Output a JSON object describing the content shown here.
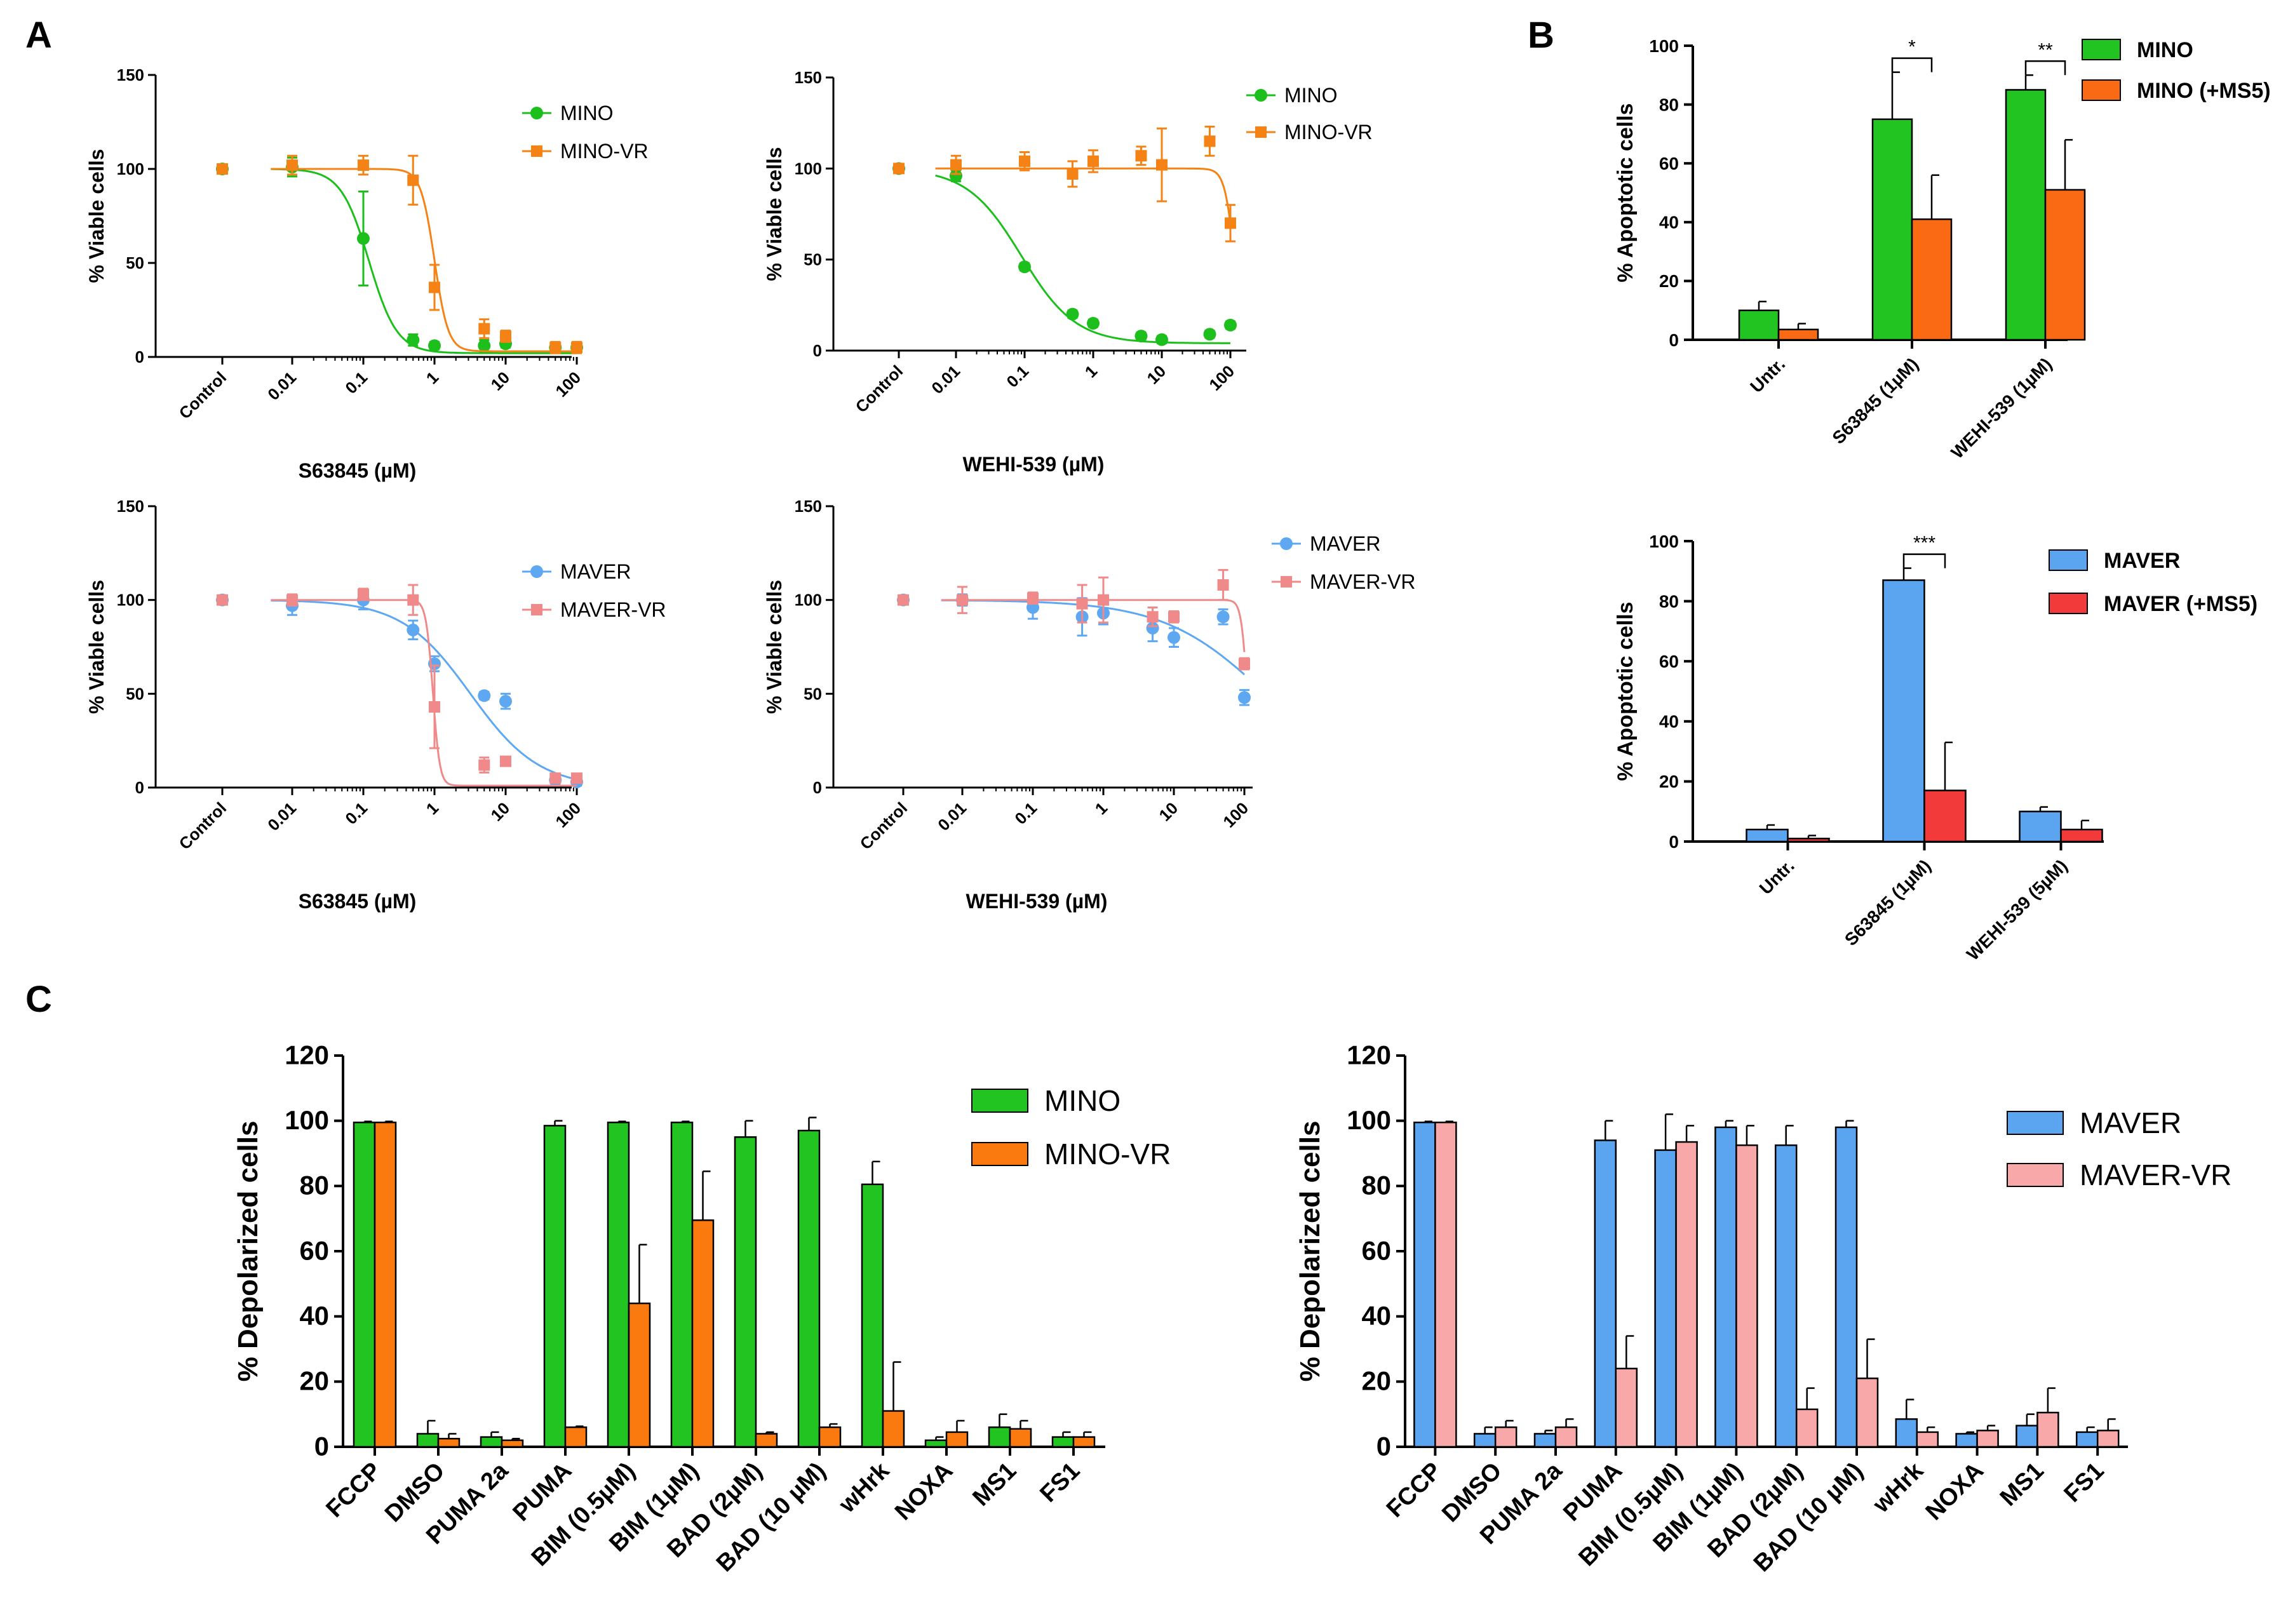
{
  "figure": {
    "panel_labels": [
      "A",
      "B",
      "C"
    ]
  },
  "colors": {
    "mino": "#1cbf1c",
    "mino_vr": "#f58214",
    "maver": "#5ea8f2",
    "maver_vr": "#f08a8a",
    "mino_ms5": "#fa6a14",
    "maver_ms5": "#f23a3a",
    "bar_green": "#22c422",
    "bar_orange": "#fa7a10",
    "bar_blue": "#5aa4f0",
    "bar_pink": "#f8a8a8"
  },
  "chart_data": [
    {
      "id": "A1",
      "type": "scatter",
      "panel": "A",
      "xlabel": "S63845  (µM)",
      "ylabel": "% Viable cells",
      "xticks": [
        "Control",
        "0.01",
        "0.1",
        "1",
        "10",
        "100"
      ],
      "ylim": [
        0,
        150
      ],
      "yticks": [
        0,
        50,
        100,
        150
      ],
      "legend": [
        "MINO",
        "MINO-VR"
      ],
      "legend_position": "top-right",
      "series": [
        {
          "name": "MINO",
          "color": "#1cbf1c",
          "marker": "circle",
          "x": [
            0.001,
            0.01,
            0.1,
            0.5,
            1,
            5,
            10,
            50,
            100
          ],
          "y": [
            100,
            101,
            63,
            9,
            6,
            6,
            7,
            5,
            5
          ],
          "err": [
            2,
            5,
            25,
            3,
            2,
            3,
            2,
            2,
            2
          ],
          "fit": {
            "top": 100,
            "bottom": 2,
            "ic50": 0.12,
            "hill": 2.2
          }
        },
        {
          "name": "MINO-VR",
          "color": "#f58214",
          "marker": "square",
          "x": [
            0.001,
            0.01,
            0.1,
            0.5,
            1,
            5,
            10,
            50,
            100
          ],
          "y": [
            100,
            102,
            102,
            94,
            37,
            15,
            11,
            5,
            5
          ],
          "err": [
            2,
            5,
            5,
            13,
            12,
            5,
            3,
            3,
            3
          ],
          "fit": {
            "top": 100,
            "bottom": 3,
            "ic50": 1.0,
            "hill": 4.5
          }
        }
      ]
    },
    {
      "id": "A2",
      "type": "scatter",
      "panel": "A",
      "xlabel": "WEHI-539 (µM)",
      "ylabel": "% Viable cells",
      "xticks": [
        "Control",
        "0.01",
        "0.1",
        "1",
        "10",
        "100"
      ],
      "ylim": [
        0,
        150
      ],
      "yticks": [
        0,
        50,
        100,
        150
      ],
      "legend": [
        "MINO",
        "MINO-VR"
      ],
      "legend_position": "top-right",
      "series": [
        {
          "name": "MINO",
          "color": "#1cbf1c",
          "marker": "circle",
          "x": [
            0.001,
            0.01,
            0.1,
            0.5,
            1,
            5,
            10,
            50,
            100
          ],
          "y": [
            100,
            96,
            46,
            20,
            15,
            8,
            6,
            9,
            14
          ],
          "err": [
            2,
            3,
            2,
            2,
            2,
            2,
            2,
            2,
            2
          ],
          "fit": {
            "top": 100,
            "bottom": 4,
            "ic50": 0.09,
            "hill": 1.1
          }
        },
        {
          "name": "MINO-VR",
          "color": "#f58214",
          "marker": "square",
          "x": [
            0.001,
            0.01,
            0.1,
            0.5,
            1,
            5,
            10,
            50,
            100
          ],
          "y": [
            100,
            102,
            104,
            97,
            104,
            107,
            102,
            115,
            70
          ],
          "err": [
            2,
            5,
            5,
            7,
            6,
            5,
            20,
            8,
            10
          ],
          "fit": {
            "top": 100,
            "bottom": 0,
            "ic50": 115,
            "hill": 6
          }
        }
      ]
    },
    {
      "id": "A3",
      "type": "scatter",
      "panel": "A",
      "xlabel": "S63845 (µM)",
      "ylabel": "% Viable cells",
      "xticks": [
        "Control",
        "0.01",
        "0.1",
        "1",
        "10",
        "100"
      ],
      "ylim": [
        0,
        150
      ],
      "yticks": [
        0,
        50,
        100,
        150
      ],
      "legend": [
        "MAVER",
        "MAVER-VR"
      ],
      "legend_position": "top-right",
      "series": [
        {
          "name": "MAVER",
          "color": "#5ea8f2",
          "marker": "circle",
          "x": [
            0.001,
            0.01,
            0.1,
            0.5,
            1,
            5,
            10,
            50,
            100
          ],
          "y": [
            100,
            97,
            100,
            84,
            66,
            49,
            46,
            4,
            3
          ],
          "err": [
            2,
            5,
            5,
            5,
            4,
            2,
            4,
            2,
            2
          ],
          "fit": {
            "top": 100,
            "bottom": 0,
            "ic50": 3.2,
            "hill": 0.9
          }
        },
        {
          "name": "MAVER-VR",
          "color": "#f08a8a",
          "marker": "square",
          "x": [
            0.001,
            0.01,
            0.1,
            0.5,
            1,
            5,
            10,
            50,
            100
          ],
          "y": [
            100,
            100,
            103,
            100,
            43,
            12,
            14,
            5,
            5
          ],
          "err": [
            2,
            3,
            3,
            8,
            22,
            4,
            2,
            2,
            2
          ],
          "fit": {
            "top": 100,
            "bottom": 1,
            "ic50": 0.95,
            "hill": 9
          }
        }
      ]
    },
    {
      "id": "A4",
      "type": "scatter",
      "panel": "A",
      "xlabel": "WEHI-539 (µM)",
      "ylabel": "% Viable cells",
      "xticks": [
        "Control",
        "0.01",
        "0.1",
        "1",
        "10",
        "100"
      ],
      "ylim": [
        0,
        150
      ],
      "yticks": [
        0,
        50,
        100,
        150
      ],
      "legend": [
        "MAVER",
        "MAVER-VR"
      ],
      "legend_position": "top-right",
      "series": [
        {
          "name": "MAVER",
          "color": "#5ea8f2",
          "marker": "circle",
          "x": [
            0.001,
            0.01,
            0.1,
            0.5,
            1,
            5,
            10,
            50,
            100
          ],
          "y": [
            100,
            100,
            96,
            91,
            93,
            85,
            80,
            91,
            48
          ],
          "err": [
            2,
            3,
            6,
            10,
            6,
            7,
            5,
            4,
            4
          ],
          "fit": {
            "top": 100,
            "bottom": 0,
            "ic50": 200,
            "hill": 0.6
          }
        },
        {
          "name": "MAVER-VR",
          "color": "#f08a8a",
          "marker": "square",
          "x": [
            0.001,
            0.01,
            0.1,
            0.5,
            1,
            5,
            10,
            50,
            100
          ],
          "y": [
            100,
            100,
            101,
            98,
            100,
            91,
            91,
            108,
            66
          ],
          "err": [
            2,
            7,
            3,
            10,
            12,
            5,
            3,
            8,
            3
          ],
          "fit": {
            "top": 100,
            "bottom": 0,
            "ic50": 110,
            "hill": 10
          }
        }
      ]
    },
    {
      "id": "B1",
      "type": "bar",
      "panel": "B",
      "ylabel": "% Apoptotic cells",
      "categories": [
        "Untr.",
        "S63845 (1µM)",
        "WEHI-539 (1µM)"
      ],
      "ylim": [
        0,
        100
      ],
      "yticks": [
        0,
        20,
        40,
        60,
        80,
        100
      ],
      "legend": [
        "MINO",
        "MINO (+MS5)"
      ],
      "legend_position": "top-right",
      "series": [
        {
          "name": "MINO",
          "color": "#22c422",
          "values": [
            10,
            75,
            85
          ],
          "err": [
            3,
            16,
            5
          ]
        },
        {
          "name": "MINO (+MS5)",
          "color": "#fa6a14",
          "values": [
            3.5,
            41,
            51
          ],
          "err": [
            2,
            15,
            17
          ]
        }
      ],
      "significance": [
        {
          "category": "S63845 (1µM)",
          "label": "*"
        },
        {
          "category": "WEHI-539 (1µM)",
          "label": "**"
        }
      ]
    },
    {
      "id": "B2",
      "type": "bar",
      "panel": "B",
      "ylabel": "% Apoptotic cells",
      "categories": [
        "Untr.",
        "S63845 (1µM)",
        "WEHI-539 (5µM)"
      ],
      "ylim": [
        0,
        100
      ],
      "yticks": [
        0,
        20,
        40,
        60,
        80,
        100
      ],
      "legend": [
        "MAVER",
        "MAVER (+MS5)"
      ],
      "legend_position": "top-right",
      "series": [
        {
          "name": "MAVER",
          "color": "#5aa4f0",
          "values": [
            4,
            87,
            10
          ],
          "err": [
            1.5,
            4,
            1.5
          ]
        },
        {
          "name": "MAVER (+MS5)",
          "color": "#f23a3a",
          "values": [
            1,
            17,
            4
          ],
          "err": [
            1,
            16,
            3
          ]
        }
      ],
      "significance": [
        {
          "category": "S63845 (1µM)",
          "label": "***"
        }
      ]
    },
    {
      "id": "C1",
      "type": "bar",
      "panel": "C",
      "ylabel": "% Depolarized cells",
      "categories": [
        "FCCP",
        "DMSO",
        "PUMA 2a",
        "PUMA",
        "BIM (0.5µM)",
        "BIM (1µM)",
        "BAD (2µM)",
        "BAD (10 µM)",
        "wHrk",
        "NOXA",
        "MS1",
        "FS1"
      ],
      "ylim": [
        0,
        120
      ],
      "yticks": [
        0,
        20,
        40,
        60,
        80,
        100,
        120
      ],
      "legend": [
        "MINO",
        "MINO-VR"
      ],
      "legend_position": "top-right",
      "series": [
        {
          "name": "MINO",
          "color": "#22c422",
          "values": [
            99.5,
            4,
            3,
            98.5,
            99.5,
            99.5,
            95,
            97,
            80.5,
            2,
            6,
            3
          ],
          "err": [
            0.3,
            4,
            1.5,
            1.5,
            0.3,
            0.3,
            5,
            4,
            7,
            1,
            4,
            1.5
          ]
        },
        {
          "name": "MINO-VR",
          "color": "#fa7a10",
          "values": [
            99.5,
            2.5,
            2,
            6,
            44,
            69.5,
            4,
            6,
            11,
            4.5,
            5.5,
            3
          ],
          "err": [
            0.3,
            1.5,
            0.5,
            0.3,
            18,
            15,
            0.5,
            1,
            15,
            3.5,
            2.5,
            1.5
          ]
        }
      ]
    },
    {
      "id": "C2",
      "type": "bar",
      "panel": "C",
      "ylabel": "% Depolarized cells",
      "categories": [
        "FCCP",
        "DMSO",
        "PUMA 2a",
        "PUMA",
        "BIM (0.5µM)",
        "BIM (1µM)",
        "BAD (2µM)",
        "BAD (10 µM)",
        "wHrk",
        "NOXA",
        "MS1",
        "FS1"
      ],
      "ylim": [
        0,
        120
      ],
      "yticks": [
        0,
        20,
        40,
        60,
        80,
        100,
        120
      ],
      "legend": [
        "MAVER",
        "MAVER-VR"
      ],
      "legend_position": "top-right",
      "series": [
        {
          "name": "MAVER",
          "color": "#5aa4f0",
          "values": [
            99.5,
            4,
            4,
            94,
            91,
            98,
            92.5,
            98,
            8.5,
            4,
            6.5,
            4.5
          ],
          "err": [
            0.3,
            2,
            1,
            6,
            11,
            2,
            6,
            2,
            6,
            0.5,
            3.5,
            1.5
          ]
        },
        {
          "name": "MAVER-VR",
          "color": "#f8a8a8",
          "values": [
            99.5,
            6,
            6,
            24,
            93.5,
            92.5,
            11.5,
            21,
            4.5,
            5,
            10.5,
            5
          ],
          "err": [
            0.3,
            2,
            2.5,
            10,
            5,
            6,
            6.5,
            12,
            1.5,
            1.5,
            7.5,
            3.5
          ]
        }
      ]
    }
  ]
}
